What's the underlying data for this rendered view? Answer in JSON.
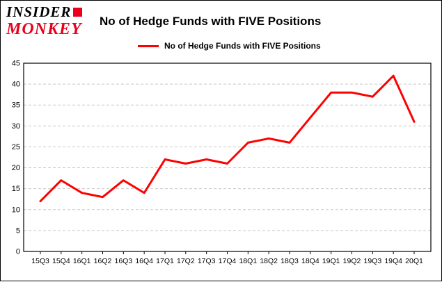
{
  "logo": {
    "line1": "INSIDER",
    "line2": "MONKEY"
  },
  "header": {
    "title": "No of Hedge Funds with FIVE Positions"
  },
  "legend": {
    "label": "No of Hedge Funds with FIVE Positions",
    "color": "#ff0000"
  },
  "chart_data": {
    "type": "line",
    "title": "No of Hedge Funds with FIVE Positions",
    "categories": [
      "15Q3",
      "15Q4",
      "16Q1",
      "16Q2",
      "16Q3",
      "16Q4",
      "17Q1",
      "17Q2",
      "17Q3",
      "17Q4",
      "18Q1",
      "18Q2",
      "18Q3",
      "18Q4",
      "19Q1",
      "19Q2",
      "19Q3",
      "19Q4",
      "20Q1"
    ],
    "values": [
      12,
      17,
      14,
      13,
      17,
      14,
      22,
      21,
      22,
      21,
      26,
      27,
      26,
      32,
      38,
      38,
      37,
      42,
      31
    ],
    "xlabel": "",
    "ylabel": "",
    "ylim": [
      0,
      45
    ],
    "yticks": [
      0,
      5,
      10,
      15,
      20,
      25,
      30,
      35,
      40,
      45
    ],
    "line_color": "#ff0000",
    "grid_color": "#c8c8c8",
    "axis_color": "#000000",
    "grid": true,
    "legend_position": "top-left"
  }
}
